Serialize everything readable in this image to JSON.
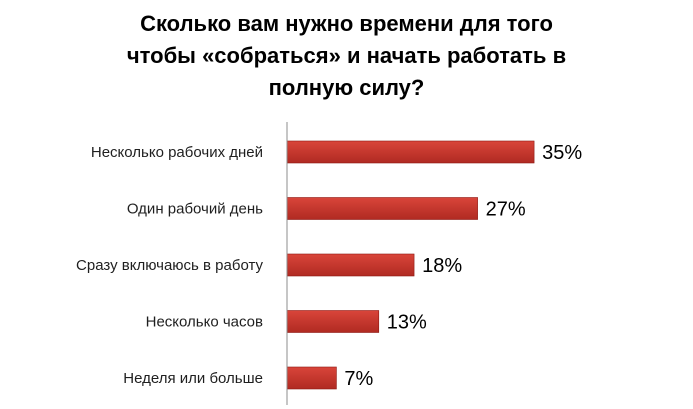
{
  "chart_data": {
    "type": "bar",
    "orientation": "horizontal",
    "title_lines": [
      "Сколько вам нужно времени для того",
      "чтобы «собраться»  и начать работать в",
      "полную силу?"
    ],
    "categories": [
      "Несколько рабочих дней",
      "Один рабочий день",
      "Сразу включаюсь в работу",
      "Несколько часов",
      "Неделя или больше"
    ],
    "values": [
      35,
      27,
      18,
      13,
      7
    ],
    "value_labels": [
      "35%",
      "27%",
      "18%",
      "13%",
      "7%"
    ],
    "unit": "%",
    "xlim": [
      0,
      50
    ],
    "grid": false,
    "legend": "none",
    "bar_color": "#c0392b",
    "bar_color_dark": "#8e1a14"
  }
}
